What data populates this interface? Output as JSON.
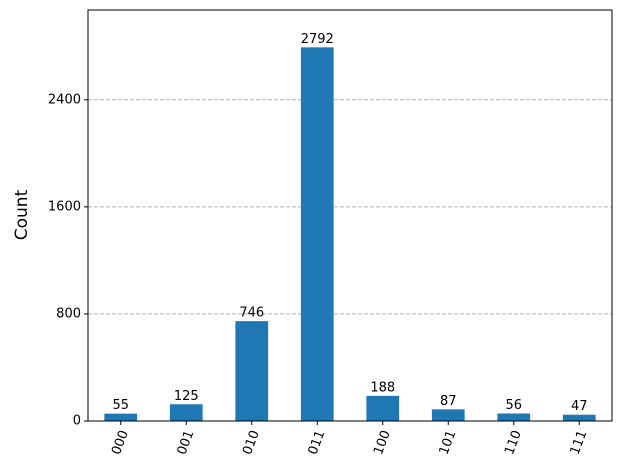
{
  "chart_data": {
    "type": "bar",
    "y_label": "Count",
    "categories": [
      "000",
      "001",
      "010",
      "011",
      "100",
      "101",
      "110",
      "111"
    ],
    "values": [
      55,
      125,
      746,
      2792,
      188,
      87,
      56,
      47
    ],
    "color": "#1f77b4",
    "ylim": [
      0,
      3071
    ],
    "yticks": [
      0,
      800,
      1600,
      2400
    ],
    "grid": true
  }
}
